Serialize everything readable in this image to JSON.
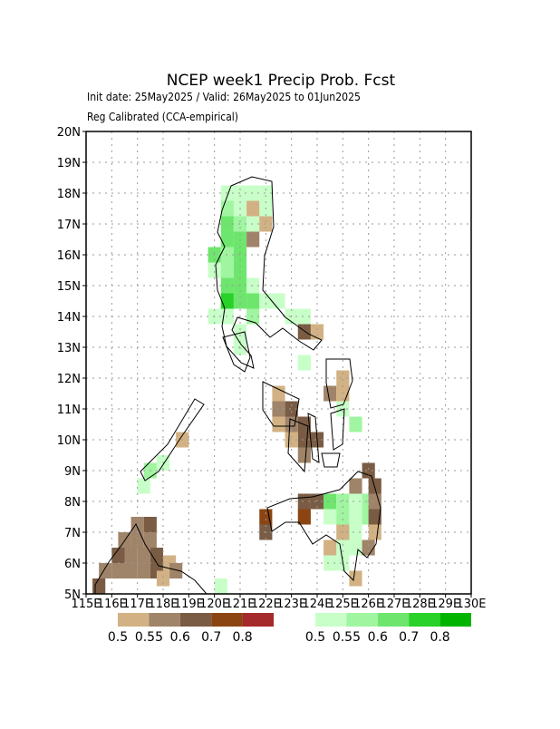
{
  "map": {
    "title": "NCEP week1 Precip Prob. Fcst",
    "subtitle": "Init date: 25May2025 / Valid: 26May2025 to 01Jun2025",
    "note": "Reg Calibrated (CCA-empirical)",
    "xlim": [
      115,
      130
    ],
    "ylim": [
      5,
      20
    ],
    "xticks": [
      {
        "value": 115,
        "label": "115E"
      },
      {
        "value": 116,
        "label": "116E"
      },
      {
        "value": 117,
        "label": "117E"
      },
      {
        "value": 118,
        "label": "118E"
      },
      {
        "value": 119,
        "label": "119E"
      },
      {
        "value": 120,
        "label": "120E"
      },
      {
        "value": 121,
        "label": "121E"
      },
      {
        "value": 122,
        "label": "122E"
      },
      {
        "value": 123,
        "label": "123E"
      },
      {
        "value": 124,
        "label": "124E"
      },
      {
        "value": 125,
        "label": "125E"
      },
      {
        "value": 126,
        "label": "126E"
      },
      {
        "value": 127,
        "label": "127E"
      },
      {
        "value": 128,
        "label": "128E"
      },
      {
        "value": 129,
        "label": "129E"
      },
      {
        "value": 130,
        "label": "130E"
      }
    ],
    "yticks": [
      {
        "value": 5,
        "label": "5N"
      },
      {
        "value": 6,
        "label": "6N"
      },
      {
        "value": 7,
        "label": "7N"
      },
      {
        "value": 8,
        "label": "8N"
      },
      {
        "value": 9,
        "label": "9N"
      },
      {
        "value": 10,
        "label": "10N"
      },
      {
        "value": 11,
        "label": "11N"
      },
      {
        "value": 12,
        "label": "12N"
      },
      {
        "value": 13,
        "label": "13N"
      },
      {
        "value": 14,
        "label": "14N"
      },
      {
        "value": 15,
        "label": "15N"
      },
      {
        "value": 16,
        "label": "16N"
      },
      {
        "value": 17,
        "label": "17N"
      },
      {
        "value": 18,
        "label": "18N"
      },
      {
        "value": 19,
        "label": "19N"
      },
      {
        "value": 20,
        "label": "20N"
      }
    ],
    "grid": true,
    "dry_scale": {
      "thresholds": [
        0.5,
        0.55,
        0.6,
        0.7,
        0.8
      ],
      "colors": [
        "#d2b284",
        "#a08469",
        "#7a5c44",
        "#8b4513",
        "#a52a2a"
      ]
    },
    "wet_scale": {
      "thresholds": [
        0.5,
        0.55,
        0.6,
        0.7,
        0.8
      ],
      "colors": [
        "#c8ffc8",
        "#a0f5a0",
        "#6ee66e",
        "#28d228",
        "#00b400"
      ]
    },
    "cell_size": 0.5,
    "wet_cells": [
      [
        120.25,
        17.75,
        0.5
      ],
      [
        120.75,
        17.75,
        0.5
      ],
      [
        121.25,
        17.75,
        0.5
      ],
      [
        121.75,
        17.75,
        0.5
      ],
      [
        120.25,
        17.25,
        0.55
      ],
      [
        120.75,
        17.25,
        0.5
      ],
      [
        121.75,
        17.25,
        0.5
      ],
      [
        120.25,
        16.75,
        0.6
      ],
      [
        120.75,
        16.75,
        0.55
      ],
      [
        121.25,
        16.75,
        0.5
      ],
      [
        120.25,
        16.25,
        0.6
      ],
      [
        120.75,
        16.25,
        0.6
      ],
      [
        119.75,
        15.75,
        0.6
      ],
      [
        120.25,
        15.75,
        0.55
      ],
      [
        120.75,
        15.75,
        0.6
      ],
      [
        119.75,
        15.25,
        0.5
      ],
      [
        120.25,
        15.25,
        0.55
      ],
      [
        120.75,
        15.25,
        0.6
      ],
      [
        120.25,
        14.75,
        0.6
      ],
      [
        120.75,
        14.75,
        0.6
      ],
      [
        121.25,
        14.75,
        0.5
      ],
      [
        120.25,
        14.25,
        0.7
      ],
      [
        120.75,
        14.25,
        0.6
      ],
      [
        121.25,
        14.25,
        0.6
      ],
      [
        121.75,
        14.25,
        0.5
      ],
      [
        122.25,
        14.25,
        0.5
      ],
      [
        119.75,
        13.75,
        0.5
      ],
      [
        120.25,
        13.75,
        0.5
      ],
      [
        121.25,
        13.75,
        0.55
      ],
      [
        122.75,
        13.75,
        0.5
      ],
      [
        123.25,
        13.75,
        0.5
      ],
      [
        120.75,
        13.25,
        0.5
      ],
      [
        120.75,
        12.75,
        0.5
      ],
      [
        123.25,
        12.25,
        0.5
      ],
      [
        124.75,
        10.75,
        0.5
      ],
      [
        125.25,
        10.25,
        0.55
      ],
      [
        117.25,
        8.75,
        0.55
      ],
      [
        117.75,
        9.0,
        0.5
      ],
      [
        117.0,
        8.25,
        0.5
      ],
      [
        124.25,
        7.75,
        0.6
      ],
      [
        124.75,
        7.75,
        0.55
      ],
      [
        125.25,
        7.75,
        0.5
      ],
      [
        125.75,
        7.75,
        0.55
      ],
      [
        124.25,
        7.25,
        0.5
      ],
      [
        124.75,
        7.25,
        0.55
      ],
      [
        125.25,
        7.25,
        0.5
      ],
      [
        125.75,
        7.25,
        0.55
      ],
      [
        124.75,
        6.75,
        0.5
      ],
      [
        125.25,
        6.75,
        0.5
      ],
      [
        124.75,
        6.25,
        0.5
      ],
      [
        125.25,
        6.25,
        0.5
      ],
      [
        124.25,
        5.75,
        0.5
      ],
      [
        124.75,
        5.75,
        0.5
      ],
      [
        120.0,
        5.0,
        0.5
      ]
    ],
    "dry_cells": [
      [
        121.25,
        17.25,
        0.5
      ],
      [
        121.75,
        16.75,
        0.5
      ],
      [
        121.25,
        16.25,
        0.55
      ],
      [
        123.25,
        13.25,
        0.6
      ],
      [
        123.75,
        13.25,
        0.5
      ],
      [
        124.75,
        11.75,
        0.5
      ],
      [
        124.25,
        11.25,
        0.55
      ],
      [
        124.75,
        11.25,
        0.5
      ],
      [
        122.25,
        11.25,
        0.5
      ],
      [
        122.25,
        10.75,
        0.55
      ],
      [
        122.75,
        10.75,
        0.6
      ],
      [
        122.25,
        10.25,
        0.5
      ],
      [
        122.75,
        10.25,
        0.55
      ],
      [
        123.25,
        10.25,
        0.6
      ],
      [
        123.25,
        9.75,
        0.6
      ],
      [
        122.75,
        9.75,
        0.5
      ],
      [
        123.75,
        9.75,
        0.6
      ],
      [
        123.25,
        9.25,
        0.55
      ],
      [
        118.5,
        9.75,
        0.5
      ],
      [
        125.75,
        8.75,
        0.6
      ],
      [
        125.25,
        8.25,
        0.55
      ],
      [
        126.0,
        8.25,
        0.6
      ],
      [
        126.0,
        7.75,
        0.55
      ],
      [
        126.0,
        7.25,
        0.6
      ],
      [
        126.0,
        6.75,
        0.5
      ],
      [
        125.75,
        6.25,
        0.55
      ],
      [
        123.25,
        7.75,
        0.6
      ],
      [
        123.75,
        7.75,
        0.6
      ],
      [
        123.25,
        7.25,
        0.7
      ],
      [
        121.75,
        7.25,
        0.7
      ],
      [
        121.75,
        6.75,
        0.6
      ],
      [
        124.75,
        6.75,
        0.5
      ],
      [
        125.25,
        5.25,
        0.5
      ],
      [
        124.25,
        6.25,
        0.5
      ],
      [
        116.75,
        7.0,
        0.55
      ],
      [
        117.25,
        7.0,
        0.6
      ],
      [
        116.25,
        6.5,
        0.55
      ],
      [
        116.75,
        6.5,
        0.55
      ],
      [
        117.25,
        6.5,
        0.55
      ],
      [
        116.0,
        6.0,
        0.6
      ],
      [
        116.5,
        6.0,
        0.55
      ],
      [
        117.0,
        6.0,
        0.55
      ],
      [
        117.5,
        6.0,
        0.6
      ],
      [
        118.0,
        5.75,
        0.5
      ],
      [
        118.25,
        5.5,
        0.55
      ],
      [
        115.5,
        5.5,
        0.55
      ],
      [
        116.0,
        5.5,
        0.55
      ],
      [
        116.5,
        5.5,
        0.55
      ],
      [
        117.0,
        5.5,
        0.55
      ],
      [
        117.5,
        5.5,
        0.6
      ],
      [
        117.75,
        5.25,
        0.5
      ],
      [
        115.25,
        5.0,
        0.6
      ]
    ]
  }
}
